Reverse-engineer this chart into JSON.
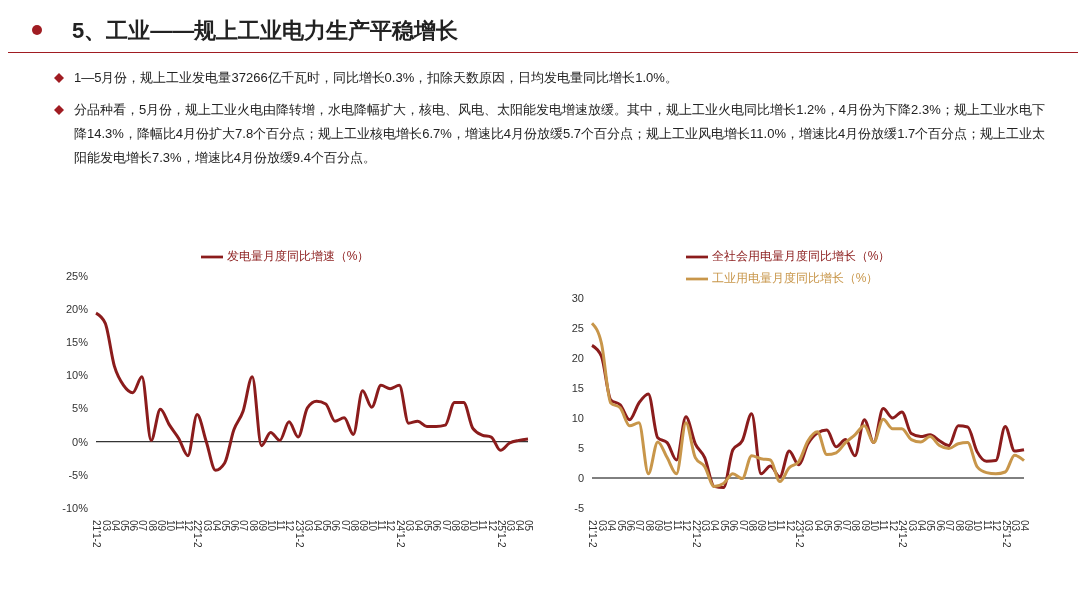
{
  "chart_data": [
    {
      "type": "other",
      "title": "5、工业——规上工业电力生产平稳增长",
      "annotations": [
        "1—5月份，规上工业发电量37266亿千瓦时，同比增长0.3%，扣除天数原因，日均发电量同比增长1.0%。",
        "分品种看，5月份，规上工业火电由降转增，水电降幅扩大，核电、风电、太阳能发电增速放缓。其中，规上工业火电同比增长1.2%，4月份为下降2.3%；规上工业水电下降14.3%，降幅比4月份扩大7.8个百分点；规上工业核电增长6.7%，增速比4月份放缓5.7个百分点；规上工业风电增长11.0%，增速比4月份放缓1.7个百分点；规上工业太阳能发电增长7.3%，增速比4月份放缓9.4个百分点。"
      ]
    },
    {
      "type": "line",
      "categories": [
        "21'1-2",
        "03",
        "04",
        "05",
        "06",
        "07",
        "08",
        "09",
        "10",
        "11",
        "12",
        "22'1-2",
        "03",
        "04",
        "05",
        "06",
        "07",
        "08",
        "09",
        "10",
        "11",
        "12",
        "23'1-2",
        "03",
        "04",
        "05",
        "06",
        "07",
        "08",
        "09",
        "10",
        "11",
        "12",
        "24'1-2",
        "03",
        "04",
        "05",
        "06",
        "07",
        "08",
        "09",
        "10",
        "11",
        "12",
        "25'1-2",
        "03",
        "04",
        "05"
      ],
      "series": [
        {
          "name": "发电量月度同比增速（%）",
          "color": "#8b1c1c",
          "values": [
            19.4,
            17.9,
            11.4,
            8.5,
            7.4,
            9.8,
            0.2,
            4.9,
            2.5,
            0.5,
            -2.1,
            4.1,
            0,
            -4.3,
            -3.2,
            1.8,
            4.6,
            9.8,
            -0.6,
            1.4,
            0.2,
            3.0,
            0.7,
            5.1,
            6.1,
            5.7,
            3.1,
            3.6,
            1.1,
            7.7,
            5.2,
            8.5,
            8.0,
            8.5,
            2.8,
            3.1,
            2.3,
            2.3,
            2.5,
            5.9,
            5.9,
            2.0,
            1.0,
            0.7,
            -1.3,
            -0.2,
            0.2,
            0.4
          ]
        }
      ],
      "ylim": [
        -10,
        25
      ],
      "yticks": [
        {
          "value": -10,
          "label": "-10%"
        },
        {
          "value": -5,
          "label": "-5%"
        },
        {
          "value": 0,
          "label": "0%"
        },
        {
          "value": 5,
          "label": "5%"
        },
        {
          "value": 10,
          "label": "10%"
        },
        {
          "value": 15,
          "label": "15%"
        },
        {
          "value": 20,
          "label": "20%"
        },
        {
          "value": 25,
          "label": "25%"
        }
      ],
      "ref_lines": [
        {
          "axis": "y",
          "value": 0,
          "color": "#000000"
        }
      ],
      "legend": "top",
      "marker": "none",
      "line_style": "solid"
    },
    {
      "type": "line",
      "categories": [
        "21'1-2",
        "03",
        "04",
        "05",
        "06",
        "07",
        "08",
        "09",
        "10",
        "11",
        "12",
        "22'1-2",
        "03",
        "04",
        "05",
        "06",
        "07",
        "08",
        "09",
        "10",
        "11",
        "12",
        "23'1-2",
        "03",
        "04",
        "05",
        "06",
        "07",
        "08",
        "09",
        "10",
        "11",
        "12",
        "24'1-2",
        "03",
        "04",
        "05",
        "06",
        "07",
        "08",
        "09",
        "10",
        "11",
        "12",
        "25'1-2",
        "03",
        "04"
      ],
      "series": [
        {
          "name": "全社会用电量月度同比增长（%）",
          "color": "#8b1c1c",
          "values": [
            22.1,
            20.3,
            13.0,
            12.2,
            9.7,
            12.5,
            14.0,
            6.7,
            5.9,
            3.0,
            10.2,
            5.7,
            3.4,
            -1.4,
            -1.6,
            4.7,
            6.2,
            10.7,
            0.7,
            2.0,
            0.2,
            4.5,
            2.2,
            5.7,
            7.5,
            8.0,
            5.2,
            6.4,
            3.7,
            9.7,
            5.9,
            11.6,
            10.0,
            11.0,
            7.4,
            6.9,
            7.2,
            6.2,
            5.4,
            8.7,
            8.5,
            4.4,
            2.8,
            2.9,
            8.6,
            4.5,
            4.7
          ]
        },
        {
          "name": "工业用电量月度同比增长（%）",
          "color": "#c8964a",
          "values": [
            25.8,
            22.5,
            12.5,
            11.7,
            8.7,
            9.2,
            0.7,
            6.0,
            3.4,
            0.7,
            9.2,
            3.4,
            1.9,
            -1.4,
            -0.9,
            0.7,
            -0.1,
            3.7,
            3.2,
            3.0,
            -0.6,
            1.7,
            2.7,
            6.2,
            7.7,
            3.9,
            4.2,
            5.9,
            7.2,
            8.7,
            5.9,
            9.8,
            8.2,
            8.2,
            6.4,
            6.0,
            6.9,
            5.4,
            4.9,
            5.7,
            5.9,
            1.9,
            0.9,
            0.7,
            1.0,
            3.8,
            2.9
          ]
        }
      ],
      "ylim": [
        -5,
        30
      ],
      "yticks": [
        -5,
        0,
        5,
        10,
        15,
        20,
        25,
        30
      ],
      "ref_lines": [
        {
          "axis": "y",
          "value": 0,
          "color": "#000000"
        }
      ],
      "legend": "top",
      "marker": "none",
      "line_style": "solid"
    }
  ]
}
